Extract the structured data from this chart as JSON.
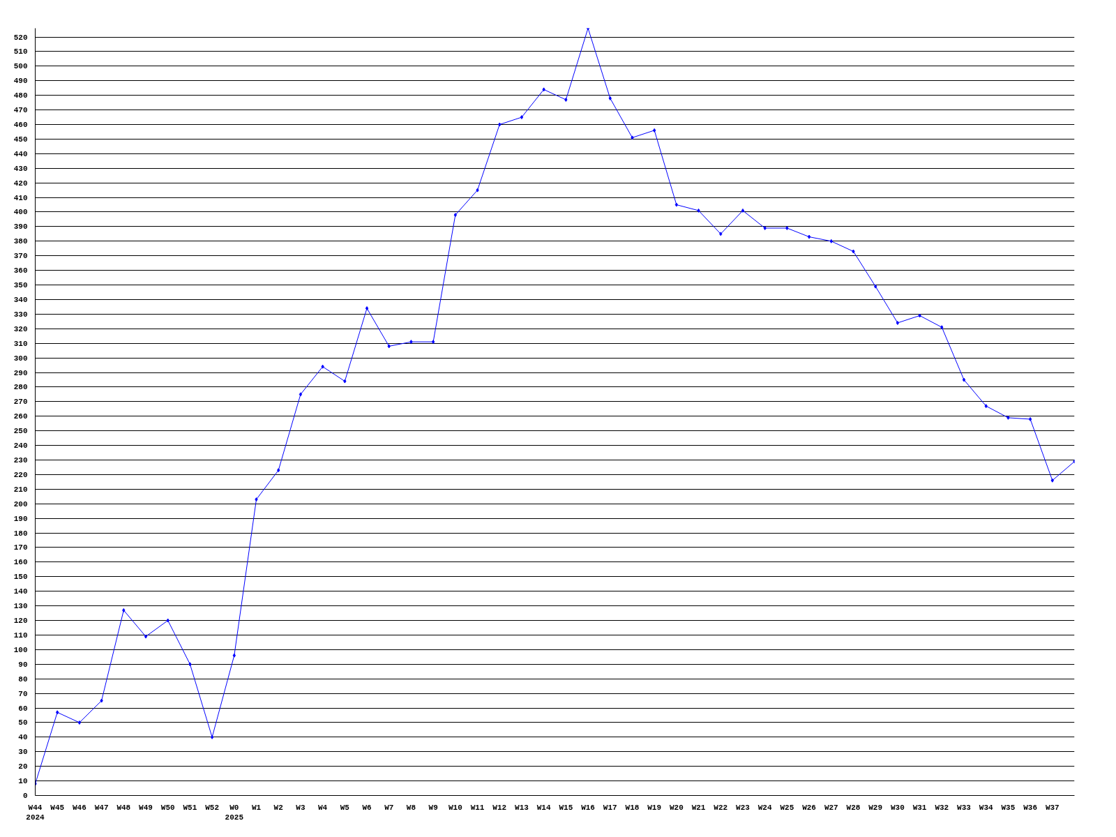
{
  "chart_data": {
    "type": "line",
    "categories": [
      "W44\n2024",
      "W45",
      "W46",
      "W47",
      "W48",
      "W49",
      "W50",
      "W51",
      "W52",
      "W0\n2025",
      "W1",
      "W2",
      "W3",
      "W4",
      "W5",
      "W6",
      "W7",
      "W8",
      "W9",
      "W10",
      "W11",
      "W12",
      "W13",
      "W14",
      "W15",
      "W16",
      "W17",
      "W18",
      "W19",
      "W20",
      "W21",
      "W22",
      "W23",
      "W24",
      "W25",
      "W26",
      "W27",
      "W28",
      "W29",
      "W30",
      "W31",
      "W32",
      "W33",
      "W34",
      "W35",
      "W36",
      "W37",
      null
    ],
    "series": [
      {
        "color": "#0000ff",
        "values": [
          8,
          57,
          50,
          65,
          127,
          109,
          120,
          90,
          40,
          96,
          203,
          223,
          275,
          294,
          284,
          334,
          308,
          311,
          311,
          398,
          415,
          460,
          465,
          484,
          477,
          526,
          478,
          451,
          456,
          405,
          401,
          385,
          401,
          389,
          389,
          383,
          380,
          373,
          349,
          324,
          329,
          321,
          285,
          267,
          259,
          258,
          216,
          229
        ]
      }
    ],
    "ylim": [
      0,
      526
    ],
    "yticks": [
      0,
      10,
      20,
      30,
      40,
      50,
      60,
      70,
      80,
      90,
      100,
      110,
      120,
      130,
      140,
      150,
      160,
      170,
      180,
      190,
      200,
      210,
      220,
      230,
      240,
      250,
      260,
      270,
      280,
      290,
      300,
      310,
      320,
      330,
      340,
      350,
      360,
      370,
      380,
      390,
      400,
      410,
      420,
      430,
      440,
      450,
      460,
      470,
      480,
      490,
      500,
      510,
      520
    ],
    "grid": "y",
    "marker": "diamond",
    "line_style": "solid"
  }
}
